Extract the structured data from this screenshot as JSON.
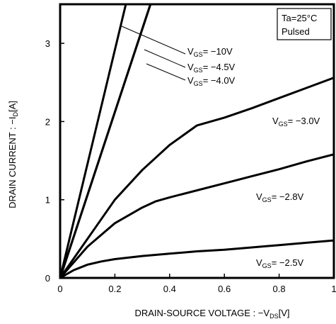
{
  "chart_data": {
    "type": "line",
    "xlabel": "DRAIN-SOURCE VOLTAGE : −V",
    "xlabel_sub": "DS",
    "xlabel_unit": "[V]",
    "ylabel": "DRAIN CURRENT : −I",
    "ylabel_sub": "D",
    "ylabel_unit": "[A]",
    "xlim": [
      0,
      1.0
    ],
    "ylim": [
      0,
      3.5
    ],
    "xticks": [
      {
        "v": 0,
        "t": "0"
      },
      {
        "v": 0.2,
        "t": "0.2"
      },
      {
        "v": 0.4,
        "t": "0.4"
      },
      {
        "v": 0.6,
        "t": "0.6"
      },
      {
        "v": 0.8,
        "t": "0.8"
      },
      {
        "v": 1.0,
        "t": "1"
      }
    ],
    "yticks": [
      {
        "v": 0,
        "t": "0"
      },
      {
        "v": 1,
        "t": "1"
      },
      {
        "v": 2,
        "t": "2"
      },
      {
        "v": 3,
        "t": "3"
      }
    ],
    "grid": false,
    "condition_box": [
      "Ta=25°C",
      "Pulsed"
    ],
    "line_color": "#000000",
    "series": [
      {
        "label_pre": "V",
        "label_sub": "GS",
        "label_post": "= −10V",
        "x": [
          0,
          0.24
        ],
        "y": [
          0,
          3.5
        ]
      },
      {
        "label_pre": "V",
        "label_sub": "GS",
        "label_post": "= −4.5V",
        "x": [
          0,
          0.33
        ],
        "y": [
          0,
          3.5
        ]
      },
      {
        "label_pre": "V",
        "label_sub": "GS",
        "label_post": "= −4.0V",
        "x": [
          0,
          0.33
        ],
        "y": [
          0,
          3.5
        ]
      },
      {
        "label_pre": "V",
        "label_sub": "GS",
        "label_post": "= −3.0V",
        "x": [
          0,
          0.1,
          0.2,
          0.3,
          0.4,
          0.5,
          0.6,
          0.7,
          0.8,
          0.9,
          1.0
        ],
        "y": [
          0,
          0.5,
          1.0,
          1.38,
          1.7,
          1.95,
          2.05,
          2.17,
          2.3,
          2.43,
          2.56
        ]
      },
      {
        "label_pre": "V",
        "label_sub": "GS",
        "label_post": "= −2.8V",
        "x": [
          0,
          0.1,
          0.2,
          0.3,
          0.35,
          0.4,
          0.5,
          0.6,
          0.7,
          0.8,
          0.9,
          1.0
        ],
        "y": [
          0,
          0.4,
          0.7,
          0.9,
          0.98,
          1.03,
          1.12,
          1.21,
          1.3,
          1.39,
          1.49,
          1.58
        ]
      },
      {
        "label_pre": "V",
        "label_sub": "GS",
        "label_post": "= −2.5V",
        "x": [
          0,
          0.05,
          0.1,
          0.15,
          0.2,
          0.3,
          0.4,
          0.5,
          0.6,
          0.7,
          0.8,
          0.9,
          1.0
        ],
        "y": [
          0,
          0.1,
          0.17,
          0.21,
          0.24,
          0.28,
          0.31,
          0.34,
          0.36,
          0.39,
          0.42,
          0.45,
          0.48
        ]
      }
    ]
  }
}
